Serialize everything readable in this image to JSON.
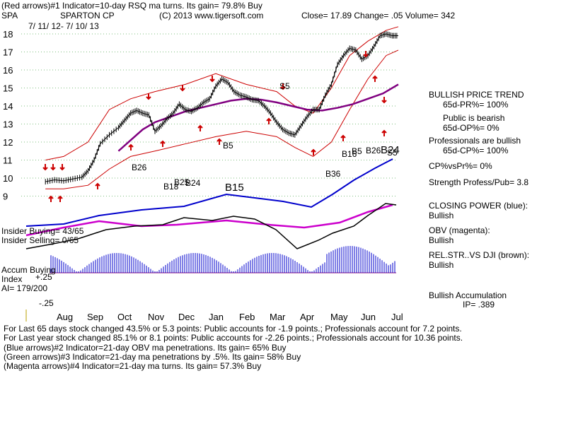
{
  "header": {
    "line1": "(Red arrows)#1 Indicator=10-day RSQ ma turns. Its gain= 79.8% Buy",
    "symbol": "SPA",
    "company": "SPARTON CP",
    "copyright": "(C) 2013 www.tigersoft.com",
    "quote": "Close=  17.89  Change= .05 Volume=  342",
    "date_range": "7/ 11/ 12-  7/ 10/ 13"
  },
  "right_panel": {
    "trend_title": "BULLISH PRICE TREND",
    "pr": "65d-PR%= 100%",
    "public_label": "Public is bearish",
    "op": "65d-OP%= 0%",
    "prof_label": "Professionals are bullish",
    "cp": "65d-CP%= 100%",
    "cpvspr": "CP%vsPr%=  0%",
    "strength": "Strength Profess/Pub= 3.8",
    "closing_power_label": "CLOSING POWER (blue):",
    "closing_power_value": "Bullish",
    "obv_label": "OBV (magenta):",
    "obv_value": "Bullish",
    "relstr_label": "REL.STR..VS DJI (brown):",
    "relstr_value": "Bullish",
    "accum_label": "Bullish Accumulation",
    "ip": "IP=  .389"
  },
  "left_labels": {
    "insider_buying": "Insider Buying= 43/65",
    "insider_selling": "Insider Selling= 0/65",
    "accum_index_1": "Accum Buying",
    "accum_index_2": "Index",
    "ai": "AI= 179/200",
    "plus25": "+.25",
    "minus25": "-.25"
  },
  "footer": {
    "line1": "For Last 65 days stock changed  43.5% or  5.3 points:  Public accounts for -1.9 points.;  Professionals account for  7.2 points.",
    "line2": "For Last year stock changed  85.1% or  8.1 points:  Public accounts for -2.26 points.;  Professionals account for  10.36 points.",
    "line3": "(Blue arrows)#2 Indicator=21-day OBV ma penetrations. Its gain= 65% Buy",
    "line4": "(Green arrows)#3 Indicator=21-day ma penetrations by .5%.  Its gain= 58% Buy",
    "line5": "(Magenta arrows)#4 Indicator=21-day ma turns. Its gain= 57.3% Buy"
  },
  "chart_data": {
    "type": "line",
    "title": "SPARTON CP",
    "ylim": [
      9,
      18
    ],
    "y_ticks": [
      18,
      17,
      16,
      15,
      14,
      13,
      12,
      11,
      10,
      9
    ],
    "x_ticks": [
      "Aug",
      "Sep",
      "Oct",
      "Nov",
      "Dec",
      "Jan",
      "Feb",
      "Mar",
      "Apr",
      "May",
      "Jun",
      "Jul"
    ],
    "x_tick_index": [
      0,
      1,
      2,
      3,
      4,
      5,
      6,
      7,
      8,
      9,
      10,
      11
    ],
    "series": [
      {
        "name": "Price",
        "color": "#000000",
        "x": [
          -0.6,
          -0.3,
          0,
          0.3,
          0.6,
          0.8,
          1,
          1.2,
          1.5,
          1.8,
          2,
          2.2,
          2.4,
          2.6,
          2.8,
          3,
          3.2,
          3.4,
          3.6,
          3.8,
          4,
          4.2,
          4.4,
          4.6,
          4.8,
          5,
          5.2,
          5.4,
          5.6,
          5.8,
          6,
          6.2,
          6.4,
          6.6,
          6.8,
          7,
          7.2,
          7.4,
          7.6,
          7.8,
          8,
          8.2,
          8.4,
          8.6,
          8.8,
          9,
          9.2,
          9.4,
          9.6,
          9.8,
          10,
          10.2,
          10.4,
          10.6,
          10.8,
          11
        ],
        "values": [
          9.8,
          9.9,
          9.85,
          9.95,
          10.05,
          10.4,
          11.0,
          11.9,
          12.4,
          12.8,
          13.2,
          13.6,
          13.75,
          13.6,
          13.5,
          12.6,
          12.9,
          13.3,
          13.6,
          14.1,
          13.8,
          13.7,
          13.9,
          14.2,
          14.4,
          15.1,
          15.5,
          15.3,
          14.8,
          14.6,
          14.5,
          14.35,
          14.3,
          14.0,
          13.6,
          13.1,
          12.7,
          12.5,
          12.4,
          12.9,
          13.4,
          13.8,
          13.8,
          14.6,
          15.2,
          16.3,
          16.8,
          17.2,
          17.1,
          16.6,
          16.8,
          17.3,
          17.9,
          18.0,
          17.9,
          17.9
        ]
      },
      {
        "name": "Upper Band",
        "color": "#cc0000",
        "x": [
          -0.6,
          0,
          0.8,
          1.5,
          2.2,
          3,
          4,
          5,
          6,
          7,
          7.6,
          8.2,
          8.8,
          9.4,
          10,
          10.6,
          11
        ],
        "values": [
          11.0,
          11.2,
          12.0,
          13.8,
          14.4,
          14.8,
          15.2,
          15.8,
          15.2,
          14.8,
          14.0,
          13.6,
          15.0,
          16.8,
          17.6,
          18.2,
          18.4
        ]
      },
      {
        "name": "Lower Band",
        "color": "#cc0000",
        "x": [
          -0.6,
          0,
          0.8,
          1.5,
          2.2,
          3,
          4,
          5,
          6,
          7,
          7.6,
          8.2,
          8.8,
          9.4,
          10,
          10.6,
          11
        ],
        "values": [
          9.4,
          9.4,
          9.6,
          10.5,
          11.2,
          11.5,
          11.9,
          12.3,
          12.6,
          12.3,
          11.7,
          11.2,
          12.0,
          13.8,
          15.5,
          16.8,
          17.1
        ]
      },
      {
        "name": "21-day MA (purple)",
        "color": "#800080",
        "x": [
          1.8,
          2.2,
          2.6,
          3,
          3.5,
          4,
          4.5,
          5,
          5.5,
          6,
          6.5,
          7,
          7.5,
          8,
          8.5,
          9,
          9.5,
          10,
          10.5,
          11
        ],
        "values": [
          11.5,
          12.1,
          12.7,
          13.1,
          13.4,
          13.7,
          13.9,
          14.1,
          14.3,
          14.4,
          14.35,
          14.2,
          14.0,
          13.8,
          13.75,
          13.9,
          14.1,
          14.4,
          14.7,
          15.2
        ]
      }
    ],
    "indicators": [
      "Closing Power (blue)",
      "OBV (magenta)",
      "Rel.Str vs DJI (brown)",
      "Accumulation Index (blue bars)"
    ],
    "annotations": [
      "S5",
      "B5",
      "B26",
      "B18",
      "B25",
      "B24",
      "B15",
      "B36",
      "B16",
      "B5",
      "B26",
      "B24",
      "S5"
    ]
  }
}
